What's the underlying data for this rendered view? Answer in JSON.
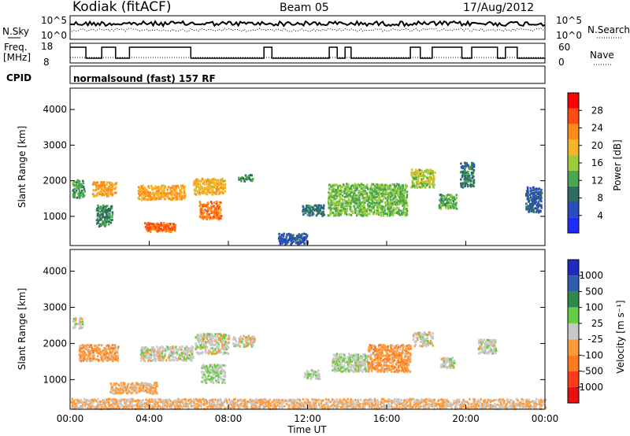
{
  "header": {
    "station": "Kodiak (fitACF)",
    "beam": "Beam 05",
    "date": "17/Aug/2012"
  },
  "noise_panel": {
    "left_label": "N.Sky",
    "right_label": "N.Search",
    "y_ticks": [
      "10^5",
      "10^0"
    ],
    "right_ticks": [
      "10^5",
      "10^0"
    ]
  },
  "freq_panel": {
    "left_label_line1": "Freq.",
    "left_label_line2": "[MHz]",
    "right_label": "Nave",
    "y_ticks": [
      "18",
      "8"
    ],
    "right_ticks": [
      "60",
      "0"
    ]
  },
  "cpid_panel": {
    "left_label": "CPID",
    "program": "normalsound (fast) 157 RF"
  },
  "x_axis": {
    "label": "Time UT",
    "ticks": [
      "00:00",
      "04:00",
      "08:00",
      "12:00",
      "16:00",
      "20:00",
      "00:00"
    ]
  },
  "colors": {
    "power_scale": [
      "#1f2bff",
      "#2a4dbb",
      "#2d6e62",
      "#4aa64e",
      "#9ccc3a",
      "#f5b728",
      "#ff8a1a",
      "#ff4a10",
      "#ff0000"
    ],
    "velocity_scale": [
      "#e81010",
      "#ff3a1a",
      "#ff7a1a",
      "#ff9b3a",
      "#c8c8c8",
      "#66cc44",
      "#2f8a4a",
      "#2c5fb0",
      "#1f2bbf"
    ]
  },
  "chart_data": [
    {
      "type": "heatmap",
      "panel": "power",
      "ylabel": "Slant Range [km]",
      "xlabel": "",
      "xlim": [
        0,
        24
      ],
      "ylim": [
        180,
        4600
      ],
      "y_ticks": [
        "4000",
        "3000",
        "2000",
        "1000"
      ],
      "colorbar_label": "Power [dB]",
      "colorbar_ticks": [
        "28",
        "24",
        "20",
        "16",
        "12",
        "8",
        "4"
      ],
      "clim": [
        0,
        32
      ],
      "regions": [
        {
          "t0": 0.1,
          "t1": 0.7,
          "r0": 1500,
          "r1": 2000,
          "v": 12
        },
        {
          "t0": 1.1,
          "t1": 2.3,
          "r0": 1550,
          "r1": 1950,
          "v": 22
        },
        {
          "t0": 1.3,
          "t1": 2.1,
          "r0": 700,
          "r1": 1300,
          "v": 10
        },
        {
          "t0": 3.4,
          "t1": 5.8,
          "r0": 1450,
          "r1": 1850,
          "v": 21
        },
        {
          "t0": 3.7,
          "t1": 5.3,
          "r0": 550,
          "r1": 800,
          "v": 25
        },
        {
          "t0": 6.2,
          "t1": 7.8,
          "r0": 1600,
          "r1": 2050,
          "v": 20
        },
        {
          "t0": 6.5,
          "t1": 7.6,
          "r0": 900,
          "r1": 1400,
          "v": 24
        },
        {
          "t0": 8.4,
          "t1": 9.2,
          "r0": 1950,
          "r1": 2150,
          "v": 10
        },
        {
          "t0": 10.5,
          "t1": 12.0,
          "r0": 200,
          "r1": 500,
          "v": 6
        },
        {
          "t0": 11.7,
          "t1": 12.8,
          "r0": 1000,
          "r1": 1300,
          "v": 9
        },
        {
          "t0": 13.0,
          "t1": 17.0,
          "r0": 1000,
          "r1": 1900,
          "v": 14
        },
        {
          "t0": 17.2,
          "t1": 18.4,
          "r0": 1800,
          "r1": 2300,
          "v": 16
        },
        {
          "t0": 18.6,
          "t1": 19.5,
          "r0": 1200,
          "r1": 1600,
          "v": 13
        },
        {
          "t0": 19.7,
          "t1": 20.4,
          "r0": 1800,
          "r1": 2500,
          "v": 9
        },
        {
          "t0": 23.0,
          "t1": 23.8,
          "r0": 1100,
          "r1": 1800,
          "v": 7
        }
      ]
    },
    {
      "type": "heatmap",
      "panel": "velocity",
      "ylabel": "Slant Range [km]",
      "xlabel": "Time UT",
      "xlim": [
        0,
        24
      ],
      "ylim": [
        180,
        4600
      ],
      "y_ticks": [
        "4000",
        "3000",
        "2000",
        "1000"
      ],
      "colorbar_label": "Velocity [m s⁻¹]",
      "colorbar_ticks": [
        "1000",
        "500",
        "100",
        "25",
        "-25",
        "-100",
        "-500",
        "-1000"
      ],
      "clim": [
        -1200,
        1200
      ],
      "regions": [
        {
          "t0": 0.1,
          "t1": 0.6,
          "r0": 2400,
          "r1": 2700,
          "v": 0
        },
        {
          "t0": 0.4,
          "t1": 2.4,
          "r0": 1500,
          "r1": 1950,
          "v": -300
        },
        {
          "t0": 2.0,
          "t1": 4.4,
          "r0": 600,
          "r1": 900,
          "v": -200
        },
        {
          "t0": 3.5,
          "t1": 6.2,
          "r0": 1500,
          "r1": 1900,
          "v": 0
        },
        {
          "t0": 6.3,
          "t1": 8.0,
          "r0": 1700,
          "r1": 2250,
          "v": 0
        },
        {
          "t0": 6.6,
          "t1": 7.8,
          "r0": 900,
          "r1": 1400,
          "v": 80
        },
        {
          "t0": 8.2,
          "t1": 9.3,
          "r0": 1900,
          "r1": 2200,
          "v": 0
        },
        {
          "t0": 11.8,
          "t1": 12.6,
          "r0": 1000,
          "r1": 1250,
          "v": 80
        },
        {
          "t0": 13.2,
          "t1": 15.0,
          "r0": 1200,
          "r1": 1700,
          "v": 60
        },
        {
          "t0": 15.0,
          "t1": 17.2,
          "r0": 1200,
          "r1": 1950,
          "v": -300
        },
        {
          "t0": 17.3,
          "t1": 18.3,
          "r0": 1900,
          "r1": 2300,
          "v": 0
        },
        {
          "t0": 18.7,
          "t1": 19.4,
          "r0": 1300,
          "r1": 1600,
          "v": 0
        },
        {
          "t0": 20.6,
          "t1": 21.5,
          "r0": 1700,
          "r1": 2100,
          "v": 0
        },
        {
          "t0": 0.0,
          "t1": 24.0,
          "r0": 180,
          "r1": 450,
          "v": -150
        }
      ]
    }
  ]
}
